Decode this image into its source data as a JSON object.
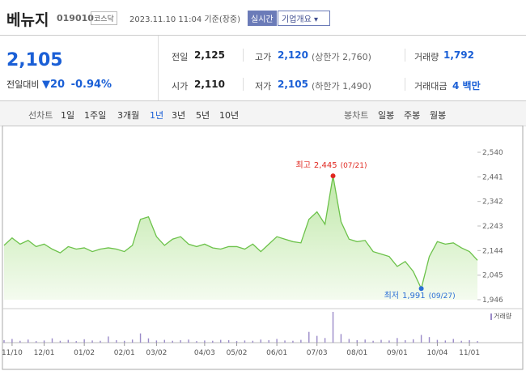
{
  "header": {
    "name": "베뉴지",
    "code": "019010",
    "market": "코스닥",
    "timestamp": "2023.11.10 11:04 기준(장중)",
    "realtime": "실시간",
    "overview": "기업개요"
  },
  "quote": {
    "price": "2,105",
    "change_label": "전일대비",
    "change": "20",
    "change_pct": "-0.94%"
  },
  "stats": [
    [
      {
        "label": "전일",
        "value": "2,125"
      },
      {
        "label": "고가",
        "value": "2,120",
        "note": "(상한가 2,760)"
      },
      {
        "label": "거래량",
        "value": "1,792"
      }
    ],
    [
      {
        "label": "시가",
        "value": "2,110"
      },
      {
        "label": "저가",
        "value": "2,105",
        "note": "(하한가 1,490)"
      },
      {
        "label": "거래대금",
        "value": "4 백만"
      }
    ]
  ],
  "tabs": {
    "line_label": "선차트",
    "line": [
      "1일",
      "1주일",
      "3개월",
      "1년",
      "3년",
      "5년",
      "10년"
    ],
    "active": "1년",
    "candle_label": "봉차트",
    "candle": [
      "일봉",
      "주봉",
      "월봉"
    ]
  },
  "chart_data": {
    "type": "line",
    "color": "#6cc24a",
    "categories": [
      null,
      "11/10",
      null,
      null,
      null,
      "12/01",
      null,
      null,
      null,
      null,
      "01/02",
      null,
      null,
      null,
      null,
      "02/01",
      null,
      null,
      null,
      "03/02",
      null,
      null,
      null,
      null,
      null,
      "04/03",
      null,
      null,
      null,
      "05/02",
      null,
      null,
      null,
      null,
      "06/01",
      null,
      null,
      null,
      null,
      "07/03",
      null,
      null,
      null,
      null,
      "08/01",
      null,
      null,
      null,
      null,
      "09/01",
      null,
      null,
      null,
      null,
      "10/04",
      null,
      null,
      null,
      "11/01",
      null
    ],
    "values": [
      2165,
      2195,
      2170,
      2185,
      2160,
      2170,
      2150,
      2135,
      2160,
      2150,
      2155,
      2140,
      2150,
      2155,
      2150,
      2140,
      2165,
      2270,
      2280,
      2200,
      2165,
      2190,
      2200,
      2170,
      2160,
      2170,
      2155,
      2150,
      2160,
      2160,
      2150,
      2170,
      2140,
      2170,
      2200,
      2190,
      2180,
      2175,
      2270,
      2300,
      2250,
      2445,
      2260,
      2190,
      2180,
      2185,
      2140,
      2130,
      2120,
      2080,
      2100,
      2060,
      1991,
      2120,
      2180,
      2170,
      2175,
      2155,
      2140,
      2105
    ],
    "ylim": [
      1946,
      2540
    ],
    "yticks": [
      {
        "value": 1946,
        "label": "1,946"
      },
      {
        "value": 2045,
        "label": "2,045"
      },
      {
        "value": 2144,
        "label": "2,144"
      },
      {
        "value": 2243,
        "label": "2,243"
      },
      {
        "value": 2342,
        "label": "2,342"
      },
      {
        "value": 2441,
        "label": "2,441"
      },
      {
        "value": 2540,
        "label": "2,540"
      }
    ],
    "annotations": [
      {
        "label": "최고",
        "value": 2445,
        "value_label": "2,445",
        "date": "(07/21)",
        "index": 41,
        "color": "#e0271f"
      },
      {
        "label": "최저",
        "value": 1991,
        "value_label": "1,991",
        "date": "(09/27)",
        "index": 52,
        "color": "#2b6fd6"
      }
    ],
    "volume": {
      "name": "거래량",
      "color": "#9a8ac8",
      "ylim": [
        0,
        100
      ],
      "values": [
        8,
        12,
        6,
        10,
        5,
        7,
        14,
        6,
        9,
        5,
        11,
        7,
        6,
        20,
        8,
        6,
        10,
        30,
        14,
        7,
        9,
        6,
        8,
        10,
        5,
        7,
        6,
        9,
        8,
        5,
        7,
        6,
        10,
        8,
        12,
        7,
        6,
        9,
        35,
        22,
        15,
        100,
        28,
        12,
        8,
        10,
        6,
        9,
        7,
        15,
        8,
        11,
        25,
        18,
        9,
        7,
        12,
        6,
        8,
        5
      ]
    }
  }
}
